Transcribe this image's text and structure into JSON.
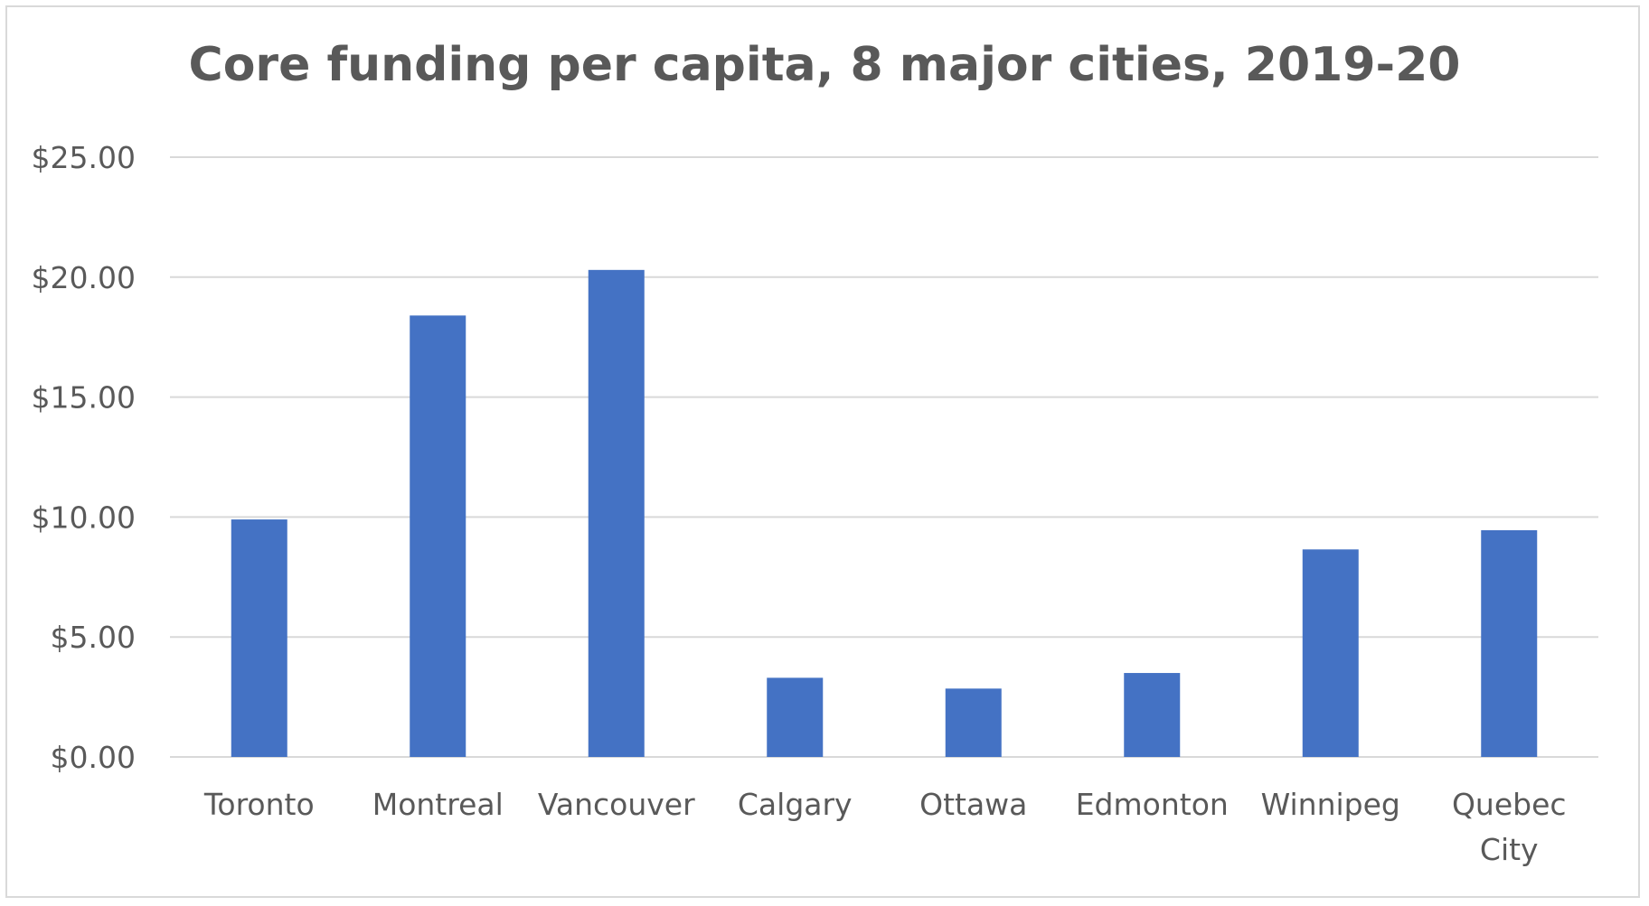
{
  "chart_data": {
    "type": "bar",
    "title": "Core funding per capita, 8 major cities, 2019-20",
    "xlabel": "",
    "ylabel": "",
    "categories": [
      [
        "Toronto"
      ],
      [
        "Montreal"
      ],
      [
        "Vancouver"
      ],
      [
        "Calgary"
      ],
      [
        "Ottawa"
      ],
      [
        "Edmonton"
      ],
      [
        "Winnipeg"
      ],
      [
        "Quebec",
        "City"
      ]
    ],
    "values": [
      9.9,
      18.4,
      20.3,
      3.3,
      2.85,
      3.5,
      8.65,
      9.45
    ],
    "ylim": [
      0,
      25
    ],
    "yticks": [
      0,
      5,
      10,
      15,
      20,
      25
    ],
    "ytick_labels": [
      "$0.00",
      "$5.00",
      "$10.00",
      "$15.00",
      "$20.00",
      "$25.00"
    ],
    "grid": true,
    "legend": "none",
    "colors": {
      "bar": "#4472c4",
      "grid": "#d9d9d9",
      "text": "#595959"
    }
  }
}
